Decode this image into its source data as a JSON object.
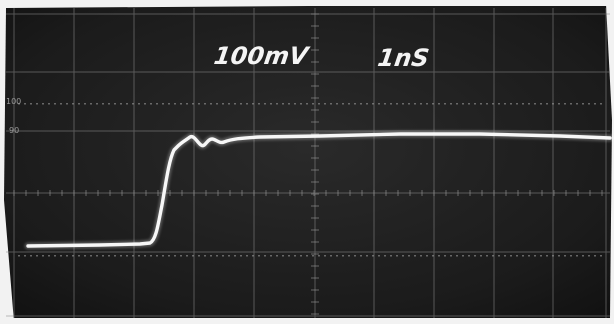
{
  "screen": {
    "volts_per_div": "100mV",
    "time_per_div": "1nS",
    "left_marks": [
      "100",
      "90"
    ]
  },
  "colors": {
    "screen_background": "#1e1e1e",
    "graticule": "#8a8a8a",
    "trace": "#f7f7f7",
    "bezel": "#f2f2f2"
  }
}
